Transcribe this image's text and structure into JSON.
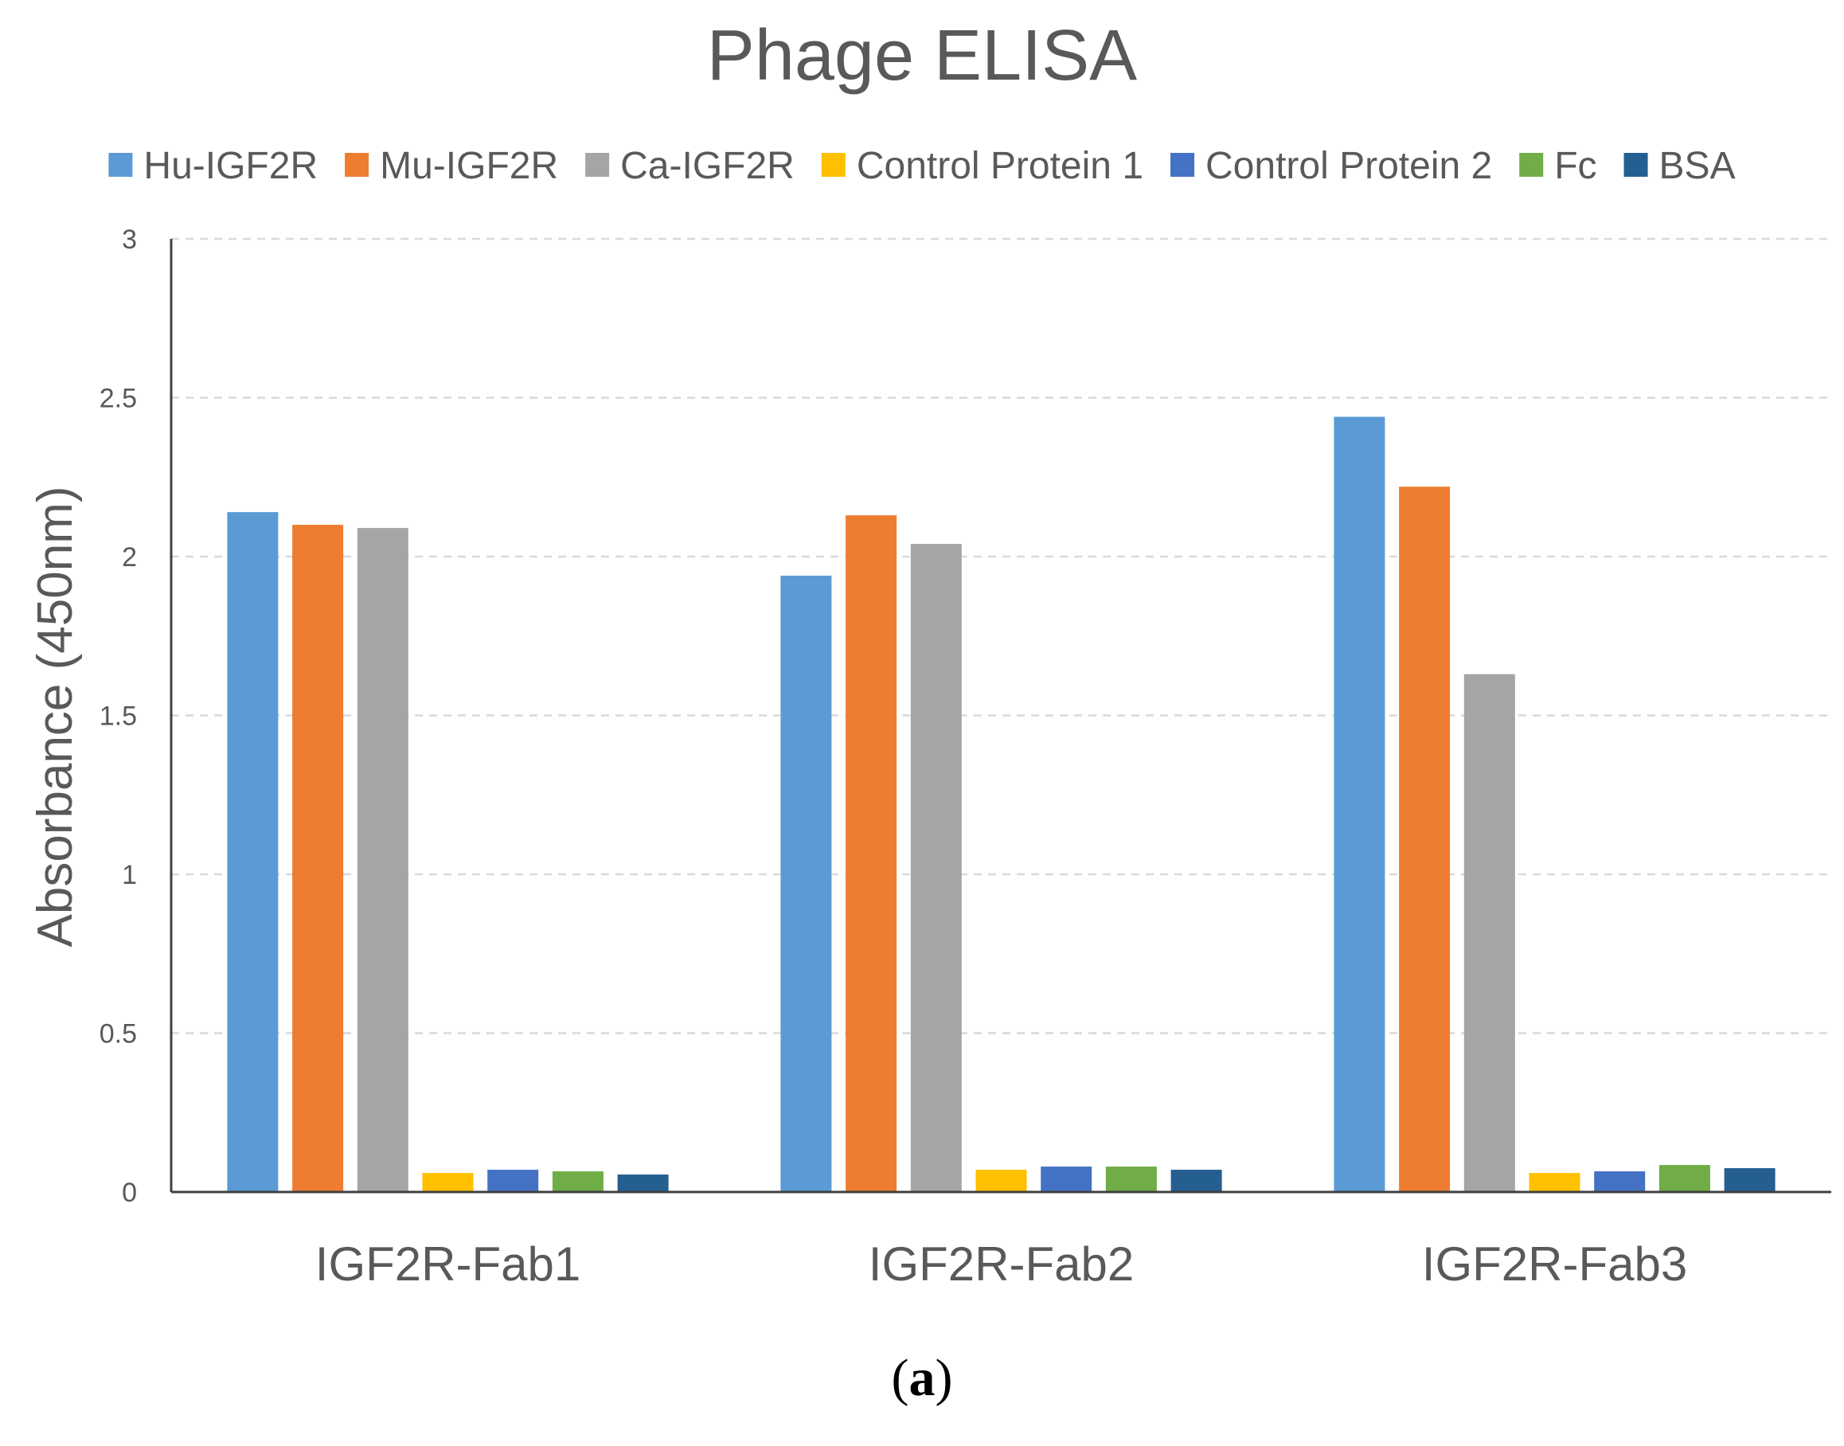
{
  "chart_data": {
    "type": "bar",
    "title": "Phage ELISA",
    "xlabel": "",
    "ylabel": "Absorbance (450nm)",
    "ylim": [
      0,
      3
    ],
    "yticks": [
      "0",
      "0.5",
      "1",
      "1.5",
      "2",
      "2.5",
      "3"
    ],
    "ytick_values": [
      0,
      0.5,
      1,
      1.5,
      2,
      2.5,
      3
    ],
    "grid": true,
    "legend_position": "top",
    "categories": [
      "IGF2R-Fab1",
      "IGF2R-Fab2",
      "IGF2R-Fab3"
    ],
    "series": [
      {
        "name": "Hu-IGF2R",
        "color": "#5B9BD5",
        "values": [
          2.14,
          1.94,
          2.44
        ]
      },
      {
        "name": "Mu-IGF2R",
        "color": "#ED7D31",
        "values": [
          2.1,
          2.13,
          2.22
        ]
      },
      {
        "name": "Ca-IGF2R",
        "color": "#A5A5A5",
        "values": [
          2.09,
          2.04,
          1.63
        ]
      },
      {
        "name": "Control Protein 1",
        "color": "#FFC000",
        "values": [
          0.06,
          0.07,
          0.06
        ]
      },
      {
        "name": "Control Protein 2",
        "color": "#4472C4",
        "values": [
          0.07,
          0.08,
          0.065
        ]
      },
      {
        "name": "Fc",
        "color": "#70AD47",
        "values": [
          0.065,
          0.08,
          0.085
        ]
      },
      {
        "name": "BSA",
        "color": "#255E91",
        "values": [
          0.055,
          0.07,
          0.075
        ]
      }
    ]
  },
  "caption": {
    "open": "(",
    "letter": "a",
    "close": ")"
  }
}
